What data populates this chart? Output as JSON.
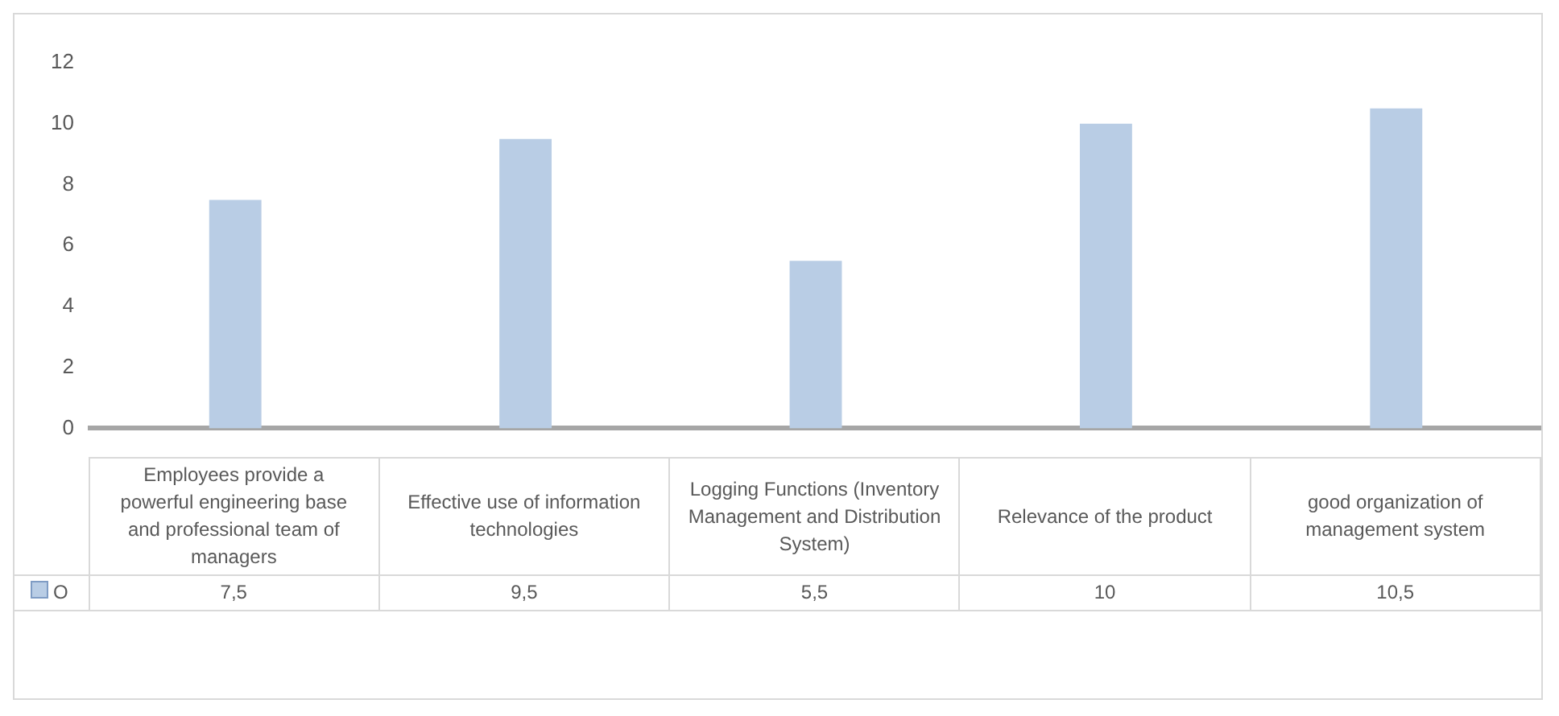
{
  "chart_data": {
    "type": "bar",
    "categories": [
      "Employees provide a powerful engineering base and professional team of managers",
      "Effective use of information technologies",
      "Logging Functions (Inventory Management and Distribution System)",
      "Relevance of the product",
      "good organization of management system"
    ],
    "series": [
      {
        "name": "O",
        "color": "#b9cde5",
        "values": [
          7.5,
          9.5,
          5.5,
          10,
          10.5
        ],
        "value_labels": [
          "7,5",
          "9,5",
          "5,5",
          "10",
          "10,5"
        ]
      }
    ],
    "ylim": [
      0,
      12
    ],
    "yticks": [
      0,
      2,
      4,
      6,
      8,
      10,
      12
    ],
    "grid": false,
    "legend": "bottom"
  }
}
